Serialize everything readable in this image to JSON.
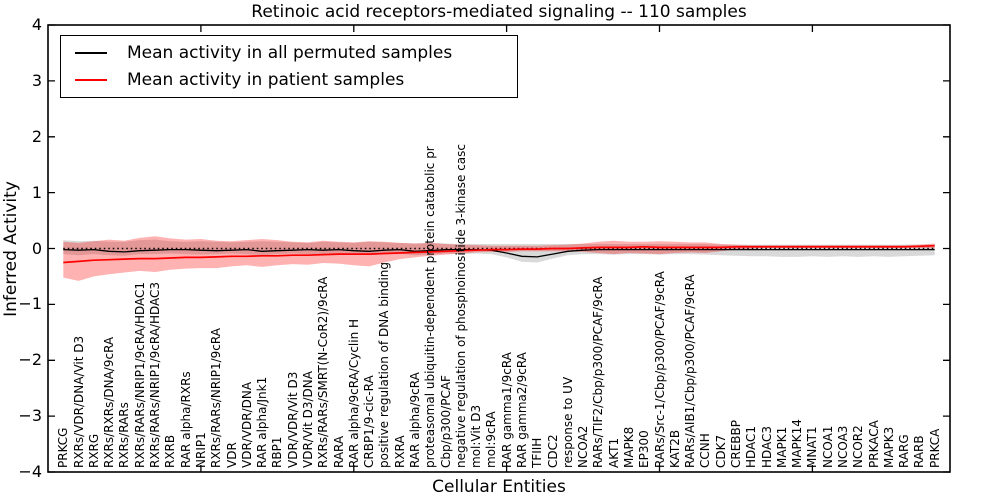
{
  "figure": {
    "title": "Retinoic acid receptors-mediated signaling -- 110 samples",
    "xlabel": "Cellular Entities",
    "ylabel": "Inferred Activity"
  },
  "legend": {
    "items": [
      {
        "label": "Mean activity in all permuted samples",
        "color": "#000000"
      },
      {
        "label": "Mean activity in patient samples",
        "color": "#ff0000"
      }
    ]
  },
  "colors": {
    "permuted_line": "#000000",
    "patient_line": "#ff0000",
    "permuted_band": "#000000",
    "patient_band": "#ff0000",
    "axes": "#000000",
    "background": "#ffffff"
  },
  "chart_data": {
    "type": "line",
    "title": "Retinoic acid receptors-mediated signaling -- 110 samples",
    "xlabel": "Cellular Entities",
    "ylabel": "Inferred Activity",
    "ylim": [
      -4,
      4
    ],
    "yticks": [
      "−4",
      "−3",
      "−2",
      "−1",
      "0",
      "1",
      "2",
      "3",
      "4"
    ],
    "ytick_values": [
      -4,
      -3,
      -2,
      -1,
      0,
      1,
      2,
      3,
      4
    ],
    "xtick_positions": [
      10,
      20,
      30,
      40,
      50
    ],
    "grid": false,
    "legend_position": "upper left",
    "zero_line": {
      "value": 0,
      "style": "dotted",
      "color": "#000000"
    },
    "categories": [
      "PRKCG",
      "RXRs/VDR/DNA/Vit D3",
      "RXRG",
      "RXRs/RXRs/DNA/9cRA",
      "RXRs/RARs",
      "RXRs/RARs/NRIP1/9cRA/HDAC1",
      "RXRs/RARs/NRIP1/9cRA/HDAC3",
      "RXRB",
      "RAR alpha/RXRs",
      "NRIP1",
      "RXRs/RARs/NRIP1/9cRA",
      "VDR",
      "VDR/VDR/DNA",
      "RAR alpha/Jnk1",
      "RBP1",
      "VDR/VDR/Vit D3",
      "VDR/Vit D3/DNA",
      "RXRs/RARs/SMRT(N-CoR2)/9cRA",
      "RARA",
      "RAR alpha/9cRA/Cyclin H",
      "CRBP1/9-cic-RA",
      "positive regulation of DNA binding",
      "RXRA",
      "RAR alpha/9cRA",
      "proteasomal ubiquitin-dependent protein catabolic pr",
      "Cbp/p300/PCAF",
      "negative regulation of phosphoinositide 3-kinase casc",
      "mol:Vit D3",
      "mol:9cRA",
      "RAR gamma1/9cRA",
      "RAR gamma2/9cRA",
      "TFIIH",
      "CDC2",
      "response to UV",
      "NCOA2",
      "RARs/TIF2/Cbp/p300/PCAF/9cRA",
      "AKT1",
      "MAPK8",
      "EP300",
      "RARs/Src-1/Cbp/p300/PCAF/9cRA",
      "KAT2B",
      "RARs/AIB1/Cbp/p300/PCAF/9cRA",
      "CCNH",
      "CDK7",
      "CREBBP",
      "HDAC1",
      "HDAC3",
      "MAPK1",
      "MAPK14",
      "MNAT1",
      "NCOA1",
      "NCOA3",
      "NCOR2",
      "PRKACA",
      "MAPK3",
      "RARG",
      "RARB",
      "PRKCA"
    ],
    "series": [
      {
        "name": "Mean activity in all permuted samples",
        "color": "#000000",
        "values": [
          -0.02,
          -0.03,
          -0.02,
          -0.05,
          -0.06,
          -0.04,
          -0.03,
          -0.02,
          -0.02,
          -0.03,
          -0.04,
          -0.03,
          -0.02,
          -0.05,
          -0.04,
          -0.03,
          -0.02,
          -0.03,
          -0.02,
          -0.04,
          -0.05,
          -0.03,
          -0.02,
          -0.05,
          -0.04,
          -0.02,
          -0.02,
          -0.02,
          -0.03,
          -0.08,
          -0.14,
          -0.15,
          -0.1,
          -0.05,
          -0.03,
          -0.02,
          -0.02,
          -0.02,
          -0.02,
          -0.02,
          -0.02,
          -0.02,
          -0.02,
          -0.02,
          -0.02,
          -0.02,
          -0.02,
          -0.02,
          -0.02,
          -0.02,
          -0.02,
          -0.02,
          -0.02,
          -0.02,
          -0.02,
          -0.02,
          -0.02,
          -0.02
        ]
      },
      {
        "name": "Mean activity in patient samples",
        "color": "#ff0000",
        "values": [
          -0.25,
          -0.23,
          -0.21,
          -0.2,
          -0.19,
          -0.18,
          -0.18,
          -0.17,
          -0.16,
          -0.16,
          -0.15,
          -0.14,
          -0.14,
          -0.13,
          -0.13,
          -0.12,
          -0.12,
          -0.11,
          -0.1,
          -0.1,
          -0.1,
          -0.09,
          -0.08,
          -0.07,
          -0.06,
          -0.05,
          -0.04,
          -0.03,
          -0.02,
          -0.02,
          -0.01,
          -0.01,
          0.0,
          0.0,
          0.01,
          0.02,
          0.02,
          0.02,
          0.03,
          0.02,
          0.02,
          0.02,
          0.02,
          0.02,
          0.03,
          0.03,
          0.03,
          0.03,
          0.03,
          0.03,
          0.03,
          0.03,
          0.03,
          0.03,
          0.03,
          0.03,
          0.04,
          0.05
        ]
      }
    ],
    "bands": [
      {
        "name": "permuted range",
        "color": "#000000",
        "opacity": 0.15,
        "lo": [
          -0.1,
          -0.12,
          -0.1,
          -0.12,
          -0.13,
          -0.1,
          -0.1,
          -0.09,
          -0.1,
          -0.11,
          -0.1,
          -0.09,
          -0.1,
          -0.12,
          -0.1,
          -0.09,
          -0.1,
          -0.1,
          -0.09,
          -0.1,
          -0.11,
          -0.1,
          -0.09,
          -0.12,
          -0.11,
          -0.09,
          -0.1,
          -0.09,
          -0.1,
          -0.16,
          -0.24,
          -0.25,
          -0.18,
          -0.12,
          -0.1,
          -0.1,
          -0.11,
          -0.1,
          -0.1,
          -0.11,
          -0.1,
          -0.1,
          -0.11,
          -0.12,
          -0.13,
          -0.14,
          -0.14,
          -0.15,
          -0.15,
          -0.14,
          -0.15,
          -0.14,
          -0.15,
          -0.14,
          -0.15,
          -0.14,
          -0.13,
          -0.12
        ],
        "hi": [
          0.15,
          0.13,
          0.14,
          0.12,
          0.12,
          0.15,
          0.16,
          0.13,
          0.12,
          0.13,
          0.12,
          0.11,
          0.12,
          0.13,
          0.12,
          0.11,
          0.1,
          0.12,
          0.11,
          0.1,
          0.12,
          0.11,
          0.1,
          0.09,
          0.1,
          0.09,
          0.08,
          0.08,
          0.08,
          0.08,
          0.08,
          0.08,
          0.08,
          0.08,
          0.08,
          0.08,
          0.08,
          0.08,
          0.08,
          0.08,
          0.08,
          0.08,
          0.08,
          0.07,
          0.07,
          0.07,
          0.07,
          0.07,
          0.07,
          0.07,
          0.07,
          0.07,
          0.07,
          0.07,
          0.07,
          0.07,
          0.07,
          0.07
        ]
      },
      {
        "name": "patient range",
        "color": "#ff0000",
        "opacity": 0.3,
        "lo": [
          -0.52,
          -0.58,
          -0.5,
          -0.46,
          -0.43,
          -0.4,
          -0.42,
          -0.38,
          -0.36,
          -0.35,
          -0.35,
          -0.32,
          -0.3,
          -0.33,
          -0.3,
          -0.28,
          -0.29,
          -0.26,
          -0.27,
          -0.3,
          -0.32,
          -0.25,
          -0.19,
          -0.16,
          -0.13,
          -0.11,
          -0.09,
          -0.07,
          -0.06,
          -0.06,
          -0.05,
          -0.05,
          -0.05,
          -0.05,
          -0.06,
          -0.08,
          -0.1,
          -0.08,
          -0.09,
          -0.1,
          -0.08,
          -0.07,
          -0.08,
          -0.05,
          -0.02,
          0.0,
          0.01,
          0.01,
          0.01,
          0.01,
          0.01,
          0.01,
          0.01,
          0.01,
          0.01,
          0.01,
          0.01,
          0.0
        ],
        "hi": [
          0.12,
          0.1,
          0.13,
          0.16,
          0.14,
          0.19,
          0.22,
          0.18,
          0.16,
          0.17,
          0.14,
          0.13,
          0.15,
          0.17,
          0.15,
          0.12,
          0.11,
          0.14,
          0.12,
          0.11,
          0.13,
          0.12,
          0.1,
          0.09,
          0.1,
          0.08,
          0.07,
          0.06,
          0.05,
          0.05,
          0.05,
          0.05,
          0.06,
          0.07,
          0.09,
          0.12,
          0.14,
          0.12,
          0.12,
          0.13,
          0.12,
          0.11,
          0.11,
          0.08,
          0.07,
          0.06,
          0.06,
          0.06,
          0.06,
          0.06,
          0.06,
          0.06,
          0.06,
          0.06,
          0.06,
          0.06,
          0.07,
          0.09
        ]
      }
    ]
  }
}
